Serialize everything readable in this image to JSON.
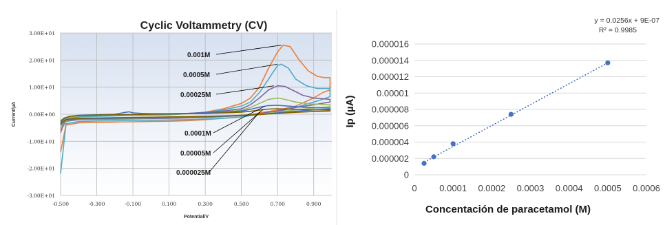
{
  "chart_data": [
    {
      "type": "line",
      "title": "Cyclic Voltammetry (CV)",
      "xlabel": "Potential/V",
      "ylabel": "Current/µA",
      "xlim": [
        -0.5,
        1.0
      ],
      "ylim": [
        -30,
        30
      ],
      "x_ticks": [
        "-0.500",
        "-0.300",
        "-0.100",
        "0.100",
        "0.300",
        "0.500",
        "0.700",
        "0.900"
      ],
      "x_tick_values": [
        -0.5,
        -0.3,
        -0.1,
        0.1,
        0.3,
        0.5,
        0.7,
        0.9
      ],
      "y_ticks": [
        "3.00E+01",
        "2.00E+01",
        "1.00E+01",
        "0.00E+00",
        "-1.00E+01",
        "-2.00E+01",
        "-3.00E+01"
      ],
      "y_tick_values": [
        30,
        20,
        10,
        0,
        -10,
        -20,
        -30
      ],
      "grid": true,
      "annotations": [
        {
          "text": "0.001M",
          "points_to": [
            0.72,
            25.5
          ]
        },
        {
          "text": "0.0005M",
          "points_to": [
            0.7,
            18.5
          ]
        },
        {
          "text": "0.00025M",
          "points_to": [
            0.68,
            10.5
          ]
        },
        {
          "text": "0.0001M",
          "points_to": [
            0.63,
            3.0
          ]
        },
        {
          "text": "0.00005M",
          "points_to": [
            0.62,
            1.8
          ]
        },
        {
          "text": "0.000025M",
          "points_to": [
            0.6,
            0.8
          ]
        }
      ],
      "series": [
        {
          "color": "#ed7d31",
          "forward": [
            [
              -0.5,
              -7
            ],
            [
              -0.48,
              -3
            ],
            [
              -0.45,
              -1.5
            ],
            [
              -0.4,
              -1
            ],
            [
              -0.3,
              -0.6
            ],
            [
              -0.2,
              -0.5
            ],
            [
              -0.1,
              -0.4
            ],
            [
              0.0,
              -0.3
            ],
            [
              0.1,
              -0.2
            ],
            [
              0.2,
              0.2
            ],
            [
              0.3,
              0.8
            ],
            [
              0.4,
              2
            ],
            [
              0.5,
              4
            ],
            [
              0.55,
              6
            ],
            [
              0.6,
              10
            ],
            [
              0.65,
              17
            ],
            [
              0.7,
              23
            ],
            [
              0.73,
              25.5
            ],
            [
              0.77,
              25
            ],
            [
              0.82,
              20
            ],
            [
              0.87,
              16
            ],
            [
              0.92,
              14
            ],
            [
              0.96,
              13.5
            ],
            [
              0.99,
              13.5
            ]
          ],
          "reverse": [
            [
              0.99,
              9
            ],
            [
              0.95,
              8
            ],
            [
              0.9,
              6
            ],
            [
              0.85,
              4.5
            ],
            [
              0.8,
              3
            ],
            [
              0.7,
              1.5
            ],
            [
              0.6,
              0.5
            ],
            [
              0.5,
              -1
            ],
            [
              0.4,
              -1.5
            ],
            [
              0.3,
              -2
            ],
            [
              0.2,
              -2.4
            ],
            [
              0.1,
              -2.6
            ],
            [
              0.0,
              -2.7
            ],
            [
              -0.1,
              -2.8
            ],
            [
              -0.2,
              -2.9
            ],
            [
              -0.3,
              -3
            ],
            [
              -0.4,
              -3.2
            ],
            [
              -0.47,
              -4
            ],
            [
              -0.5,
              -14
            ]
          ]
        },
        {
          "color": "#4bacc6",
          "forward": [
            [
              -0.5,
              -5
            ],
            [
              -0.48,
              -2.5
            ],
            [
              -0.45,
              -1.5
            ],
            [
              -0.4,
              -1
            ],
            [
              -0.3,
              -0.8
            ],
            [
              -0.2,
              -0.6
            ],
            [
              -0.1,
              -0.4
            ],
            [
              0.0,
              -0.3
            ],
            [
              0.1,
              -0.2
            ],
            [
              0.2,
              0.2
            ],
            [
              0.3,
              0.7
            ],
            [
              0.4,
              1.6
            ],
            [
              0.5,
              3
            ],
            [
              0.55,
              4.5
            ],
            [
              0.6,
              8
            ],
            [
              0.65,
              13
            ],
            [
              0.7,
              18
            ],
            [
              0.72,
              18.5
            ],
            [
              0.76,
              17
            ],
            [
              0.8,
              13
            ],
            [
              0.86,
              10.5
            ],
            [
              0.92,
              9.5
            ],
            [
              0.99,
              9.5
            ]
          ],
          "reverse": [
            [
              0.99,
              6.5
            ],
            [
              0.95,
              5.5
            ],
            [
              0.9,
              4.5
            ],
            [
              0.85,
              3.5
            ],
            [
              0.8,
              2.5
            ],
            [
              0.7,
              1
            ],
            [
              0.6,
              0
            ],
            [
              0.5,
              -1
            ],
            [
              0.4,
              -1.5
            ],
            [
              0.3,
              -1.8
            ],
            [
              0.2,
              -2
            ],
            [
              0.1,
              -2.1
            ],
            [
              0.0,
              -2.2
            ],
            [
              -0.1,
              -2.3
            ],
            [
              -0.2,
              -2.4
            ],
            [
              -0.3,
              -2.5
            ],
            [
              -0.4,
              -2.7
            ],
            [
              -0.47,
              -3.5
            ],
            [
              -0.5,
              -22
            ]
          ]
        },
        {
          "color": "#8064a2",
          "forward": [
            [
              -0.5,
              -4
            ],
            [
              -0.48,
              -2
            ],
            [
              -0.45,
              -1
            ],
            [
              -0.4,
              -0.6
            ],
            [
              -0.3,
              -0.4
            ],
            [
              -0.2,
              -0.3
            ],
            [
              -0.1,
              -0.2
            ],
            [
              0.0,
              0
            ],
            [
              0.1,
              0.1
            ],
            [
              0.2,
              0.3
            ],
            [
              0.3,
              0.6
            ],
            [
              0.4,
              1.2
            ],
            [
              0.5,
              2
            ],
            [
              0.55,
              3.5
            ],
            [
              0.6,
              6
            ],
            [
              0.65,
              9
            ],
            [
              0.7,
              10.5
            ],
            [
              0.74,
              10.3
            ],
            [
              0.78,
              9
            ],
            [
              0.84,
              7
            ],
            [
              0.9,
              6
            ],
            [
              0.99,
              5.5
            ]
          ],
          "reverse": [
            [
              0.99,
              4.5
            ],
            [
              0.9,
              3.5
            ],
            [
              0.8,
              2.5
            ],
            [
              0.7,
              1.2
            ],
            [
              0.6,
              0.2
            ],
            [
              0.5,
              -0.5
            ],
            [
              0.4,
              -0.9
            ],
            [
              0.3,
              -1.2
            ],
            [
              0.2,
              -1.4
            ],
            [
              0.1,
              -1.5
            ],
            [
              0.0,
              -1.6
            ],
            [
              -0.1,
              -1.7
            ],
            [
              -0.2,
              -1.8
            ],
            [
              -0.3,
              -1.9
            ],
            [
              -0.4,
              -2
            ],
            [
              -0.47,
              -2.6
            ],
            [
              -0.5,
              -6
            ]
          ]
        },
        {
          "color": "#9bbb59",
          "forward": [
            [
              -0.5,
              -3.5
            ],
            [
              -0.48,
              -1.8
            ],
            [
              -0.45,
              -1
            ],
            [
              -0.4,
              -0.6
            ],
            [
              -0.3,
              -0.4
            ],
            [
              -0.2,
              -0.3
            ],
            [
              -0.1,
              -0.2
            ],
            [
              0.0,
              0
            ],
            [
              0.1,
              0.1
            ],
            [
              0.2,
              0.2
            ],
            [
              0.3,
              0.4
            ],
            [
              0.4,
              0.8
            ],
            [
              0.5,
              1.5
            ],
            [
              0.55,
              2.5
            ],
            [
              0.6,
              4
            ],
            [
              0.65,
              5.5
            ],
            [
              0.7,
              6
            ],
            [
              0.74,
              5.5
            ],
            [
              0.8,
              4.5
            ],
            [
              0.88,
              3.8
            ],
            [
              0.99,
              3.5
            ]
          ],
          "reverse": [
            [
              0.99,
              2.8
            ],
            [
              0.9,
              2.3
            ],
            [
              0.8,
              1.6
            ],
            [
              0.7,
              0.8
            ],
            [
              0.6,
              0
            ],
            [
              0.5,
              -0.5
            ],
            [
              0.4,
              -0.8
            ],
            [
              0.3,
              -1
            ],
            [
              0.2,
              -1.2
            ],
            [
              0.1,
              -1.3
            ],
            [
              0.0,
              -1.4
            ],
            [
              -0.1,
              -1.5
            ],
            [
              -0.2,
              -1.6
            ],
            [
              -0.3,
              -1.7
            ],
            [
              -0.4,
              -1.8
            ],
            [
              -0.47,
              -2.3
            ],
            [
              -0.5,
              -5
            ]
          ]
        },
        {
          "color": "#4472c4",
          "forward": [
            [
              -0.5,
              -3
            ],
            [
              -0.48,
              -1.6
            ],
            [
              -0.45,
              -0.8
            ],
            [
              -0.4,
              -0.4
            ],
            [
              -0.3,
              -0.2
            ],
            [
              -0.2,
              0
            ],
            [
              -0.15,
              0.6
            ],
            [
              -0.12,
              0.9
            ],
            [
              -0.1,
              0.5
            ],
            [
              -0.05,
              0.3
            ],
            [
              0.0,
              0.2
            ],
            [
              0.1,
              0.2
            ],
            [
              0.2,
              0.3
            ],
            [
              0.3,
              0.5
            ],
            [
              0.4,
              0.8
            ],
            [
              0.5,
              1.2
            ],
            [
              0.55,
              1.8
            ],
            [
              0.6,
              2.6
            ],
            [
              0.65,
              3.2
            ],
            [
              0.7,
              3.3
            ],
            [
              0.76,
              3
            ],
            [
              0.84,
              2.6
            ],
            [
              0.92,
              2.4
            ],
            [
              0.99,
              2.3
            ]
          ],
          "reverse": [
            [
              0.99,
              1.9
            ],
            [
              0.9,
              1.6
            ],
            [
              0.8,
              1.1
            ],
            [
              0.7,
              0.5
            ],
            [
              0.6,
              -0.1
            ],
            [
              0.5,
              -0.5
            ],
            [
              0.4,
              -0.8
            ],
            [
              0.3,
              -1
            ],
            [
              0.2,
              -1.1
            ],
            [
              0.1,
              -1.2
            ],
            [
              0.0,
              -1.3
            ],
            [
              -0.1,
              -1.4
            ],
            [
              -0.2,
              -1.5
            ],
            [
              -0.3,
              -1.6
            ],
            [
              -0.4,
              -1.7
            ],
            [
              -0.47,
              -2.1
            ],
            [
              -0.5,
              -4
            ]
          ]
        },
        {
          "color": "#7f6000",
          "forward": [
            [
              -0.5,
              -2.5
            ],
            [
              -0.48,
              -1.4
            ],
            [
              -0.45,
              -0.8
            ],
            [
              -0.4,
              -0.5
            ],
            [
              -0.3,
              -0.3
            ],
            [
              -0.2,
              -0.2
            ],
            [
              -0.1,
              -0.1
            ],
            [
              0.0,
              0
            ],
            [
              0.1,
              0.1
            ],
            [
              0.2,
              0.2
            ],
            [
              0.3,
              0.3
            ],
            [
              0.4,
              0.5
            ],
            [
              0.5,
              0.8
            ],
            [
              0.55,
              1.1
            ],
            [
              0.6,
              1.5
            ],
            [
              0.65,
              1.9
            ],
            [
              0.7,
              2
            ],
            [
              0.76,
              1.9
            ],
            [
              0.84,
              1.7
            ],
            [
              0.92,
              1.6
            ],
            [
              0.99,
              1.6
            ]
          ],
          "reverse": [
            [
              0.99,
              1.2
            ],
            [
              0.9,
              1
            ],
            [
              0.8,
              0.7
            ],
            [
              0.7,
              0.3
            ],
            [
              0.6,
              -0.1
            ],
            [
              0.5,
              -0.4
            ],
            [
              0.4,
              -0.6
            ],
            [
              0.3,
              -0.8
            ],
            [
              0.2,
              -0.9
            ],
            [
              0.1,
              -1
            ],
            [
              0.0,
              -1.1
            ],
            [
              -0.1,
              -1.2
            ],
            [
              -0.2,
              -1.3
            ],
            [
              -0.3,
              -1.4
            ],
            [
              -0.4,
              -1.5
            ],
            [
              -0.47,
              -1.9
            ],
            [
              -0.5,
              -3.5
            ]
          ]
        }
      ]
    },
    {
      "type": "scatter",
      "xlabel": "Concentación de paracetamol (M)",
      "ylabel": "Ip (µA)",
      "xlim": [
        0,
        0.0006
      ],
      "ylim": [
        0,
        1.6e-05
      ],
      "x_ticks": [
        "0",
        "0.0001",
        "0.0002",
        "0.0003",
        "0.0004",
        "0.0005",
        "0.0006"
      ],
      "x_tick_values": [
        0,
        0.0001,
        0.0002,
        0.0003,
        0.0004,
        0.0005,
        0.0006
      ],
      "y_ticks": [
        "0",
        "0.000002",
        "0.000004",
        "0.000006",
        "0.000008",
        "0.00001",
        "0.000012",
        "0.000014",
        "0.000016"
      ],
      "y_tick_values": [
        0,
        2e-06,
        4e-06,
        6e-06,
        8e-06,
        1e-05,
        1.2e-05,
        1.4e-05,
        1.6e-05
      ],
      "grid": true,
      "points": [
        {
          "x": 2.5e-05,
          "y": 1.4e-06
        },
        {
          "x": 5e-05,
          "y": 2.2e-06
        },
        {
          "x": 0.0001,
          "y": 3.8e-06
        },
        {
          "x": 0.00025,
          "y": 7.4e-06
        },
        {
          "x": 0.0005,
          "y": 1.37e-05
        }
      ],
      "trendline": {
        "slope": 0.0256,
        "intercept": 9e-07,
        "x_from": 2.5e-05,
        "x_to": 0.0005
      },
      "equation": "y = 0.0256x + 9E-07",
      "r2": "R² = 0.9985",
      "marker_color": "#4472c4"
    }
  ]
}
